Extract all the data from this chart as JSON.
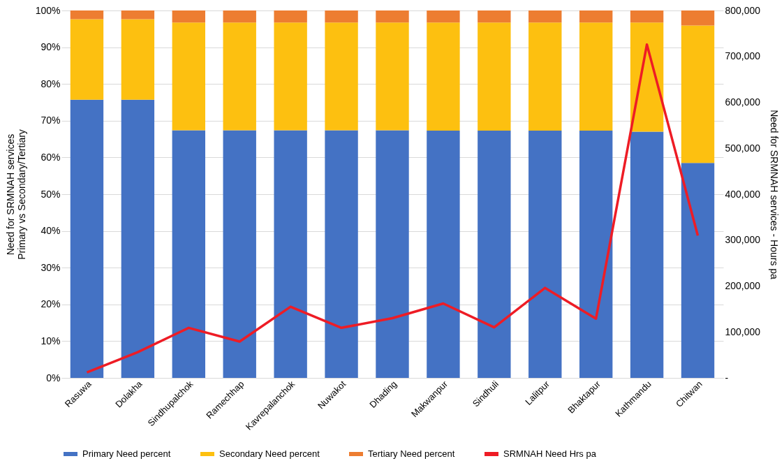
{
  "chart_data": {
    "type": "bar",
    "stacked": true,
    "ylabel": "Need for SRMNAH services\nPrimary vs Secondary/Tertiary",
    "y2label": "Need for SRMNAH services - Hours pa",
    "categories": [
      "Rasuwa",
      "Dolakha",
      "Sindhupalchok",
      "Ramechhap",
      "Kavrepalanchok",
      "Nuwakot",
      "Dhading",
      "Makwanpur",
      "Sindhuli",
      "Lalitpur",
      "Bhaktapur",
      "Kathmandu",
      "Chitwan"
    ],
    "series": [
      {
        "name": "Primary Need percent",
        "color": "#4472c4",
        "values": [
          75.7,
          75.7,
          67.4,
          67.4,
          67.4,
          67.4,
          67.4,
          67.3,
          67.3,
          67.3,
          67.3,
          67.0,
          58.5
        ]
      },
      {
        "name": "Secondary Need percent",
        "color": "#fdc010",
        "values": [
          21.9,
          21.9,
          29.3,
          29.3,
          29.3,
          29.3,
          29.3,
          29.4,
          29.4,
          29.4,
          29.4,
          29.7,
          37.4
        ]
      },
      {
        "name": "Tertiary Need percent",
        "color": "#ed7d31",
        "values": [
          2.4,
          2.4,
          3.3,
          3.3,
          3.3,
          3.3,
          3.3,
          3.3,
          3.3,
          3.3,
          3.3,
          3.3,
          4.1
        ]
      },
      {
        "name": "SRMNAH Need Hrs pa",
        "color": "#ee1c25",
        "type": "line",
        "axis": "y2",
        "values": [
          12000,
          56000,
          109000,
          79000,
          155000,
          109000,
          130000,
          162000,
          110000,
          196000,
          129000,
          726000,
          310000
        ]
      }
    ],
    "ylim": [
      0,
      100
    ],
    "yticks": [
      {
        "value": 0,
        "label": "0%"
      },
      {
        "value": 10,
        "label": "10%"
      },
      {
        "value": 20,
        "label": "20%"
      },
      {
        "value": 30,
        "label": "30%"
      },
      {
        "value": 40,
        "label": "40%"
      },
      {
        "value": 50,
        "label": "50%"
      },
      {
        "value": 60,
        "label": "60%"
      },
      {
        "value": 70,
        "label": "70%"
      },
      {
        "value": 80,
        "label": "80%"
      },
      {
        "value": 90,
        "label": "90%"
      },
      {
        "value": 100,
        "label": "100%"
      }
    ],
    "y2lim": [
      0,
      800000
    ],
    "y2ticks": [
      {
        "value": 0,
        "label": "-"
      },
      {
        "value": 100000,
        "label": "100,000"
      },
      {
        "value": 200000,
        "label": "200,000"
      },
      {
        "value": 300000,
        "label": "300,000"
      },
      {
        "value": 400000,
        "label": "400,000"
      },
      {
        "value": 500000,
        "label": "500,000"
      },
      {
        "value": 600000,
        "label": "600,000"
      },
      {
        "value": 700000,
        "label": "700,000"
      },
      {
        "value": 800000,
        "label": "800,000"
      }
    ],
    "grid": "y",
    "legend": "bottom"
  }
}
